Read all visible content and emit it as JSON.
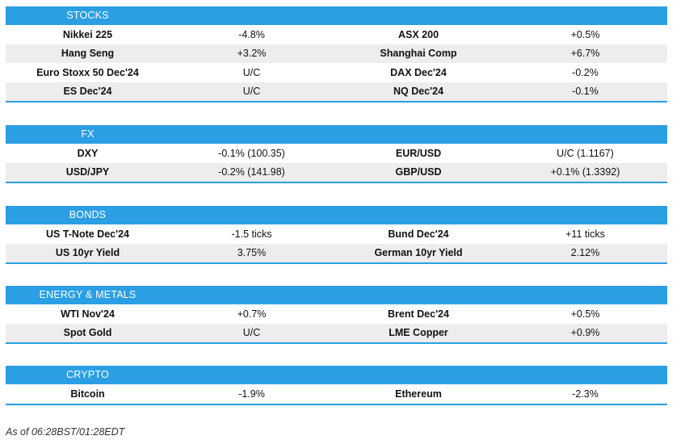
{
  "sections": [
    {
      "title": "STOCKS",
      "rows": [
        [
          "Nikkei 225",
          "-4.8%",
          "ASX 200",
          "+0.5%"
        ],
        [
          "Hang Seng",
          "+3.2%",
          "Shanghai Comp",
          "+6.7%"
        ],
        [
          "Euro Stoxx 50 Dec'24",
          "U/C",
          "DAX Dec'24",
          "-0.2%"
        ],
        [
          "ES Dec'24",
          "U/C",
          "NQ Dec'24",
          "-0.1%"
        ]
      ]
    },
    {
      "title": "FX",
      "rows": [
        [
          "DXY",
          "-0.1% (100.35)",
          "EUR/USD",
          "U/C (1.1167)"
        ],
        [
          "USD/JPY",
          "-0.2% (141.98)",
          "GBP/USD",
          "+0.1% (1.3392)"
        ]
      ]
    },
    {
      "title": "BONDS",
      "rows": [
        [
          "US T-Note Dec'24",
          "-1.5 ticks",
          "Bund Dec'24",
          "+11 ticks"
        ],
        [
          "US 10yr Yield",
          "3.75%",
          "German 10yr Yield",
          "2.12%"
        ]
      ]
    },
    {
      "title": "ENERGY & METALS",
      "rows": [
        [
          "WTI Nov'24",
          "+0.7%",
          "Brent Dec'24",
          "+0.5%"
        ],
        [
          "Spot Gold",
          "U/C",
          "LME Copper",
          "+0.9%"
        ]
      ]
    },
    {
      "title": "CRYPTO",
      "rows": [
        [
          "Bitcoin",
          "-1.9%",
          "Ethereum",
          "-2.3%"
        ]
      ]
    }
  ],
  "footnote": "As of 06:28BST/01:28EDT",
  "colors": {
    "header_bg": "#2a9fe4",
    "alt_row_bg": "#ededed"
  }
}
